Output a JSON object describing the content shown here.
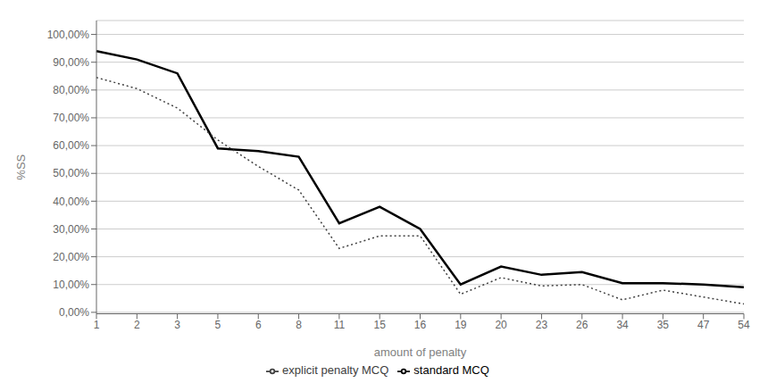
{
  "chart_data": {
    "type": "line",
    "xlabel": "amount of penalty",
    "ylabel": "%SS",
    "categories": [
      "1",
      "2",
      "3",
      "5",
      "6",
      "8",
      "11",
      "15",
      "16",
      "19",
      "20",
      "23",
      "26",
      "34",
      "35",
      "47",
      "54"
    ],
    "series": [
      {
        "name": "standard MCQ",
        "color": "#000000",
        "line_style": "solid",
        "values": [
          0.94,
          0.91,
          0.86,
          0.59,
          0.58,
          0.56,
          0.32,
          0.38,
          0.3,
          0.1,
          0.165,
          0.135,
          0.145,
          0.105,
          0.105,
          0.1,
          0.09
        ]
      },
      {
        "name": "explicit penalty MCQ",
        "color": "#404040",
        "line_style": "dotted",
        "values": [
          0.845,
          0.805,
          0.735,
          0.62,
          0.525,
          0.44,
          0.23,
          0.275,
          0.275,
          0.065,
          0.125,
          0.095,
          0.1,
          0.045,
          0.08,
          0.055,
          0.03
        ]
      }
    ],
    "ylim": [
      -0.005,
      1.05
    ],
    "yticks": [
      {
        "value": 0.0,
        "label": "0,00%"
      },
      {
        "value": 0.1,
        "label": "10,00%"
      },
      {
        "value": 0.2,
        "label": "20,00%"
      },
      {
        "value": 0.3,
        "label": "30,00%"
      },
      {
        "value": 0.4,
        "label": "40,00%"
      },
      {
        "value": 0.5,
        "label": "50,00%"
      },
      {
        "value": 0.6,
        "label": "60,00%"
      },
      {
        "value": 0.7,
        "label": "70,00%"
      },
      {
        "value": 0.8,
        "label": "80,00%"
      },
      {
        "value": 0.9,
        "label": "90,00%"
      },
      {
        "value": 1.0,
        "label": "100,00%"
      }
    ],
    "grid": true,
    "legend": "bottom"
  }
}
